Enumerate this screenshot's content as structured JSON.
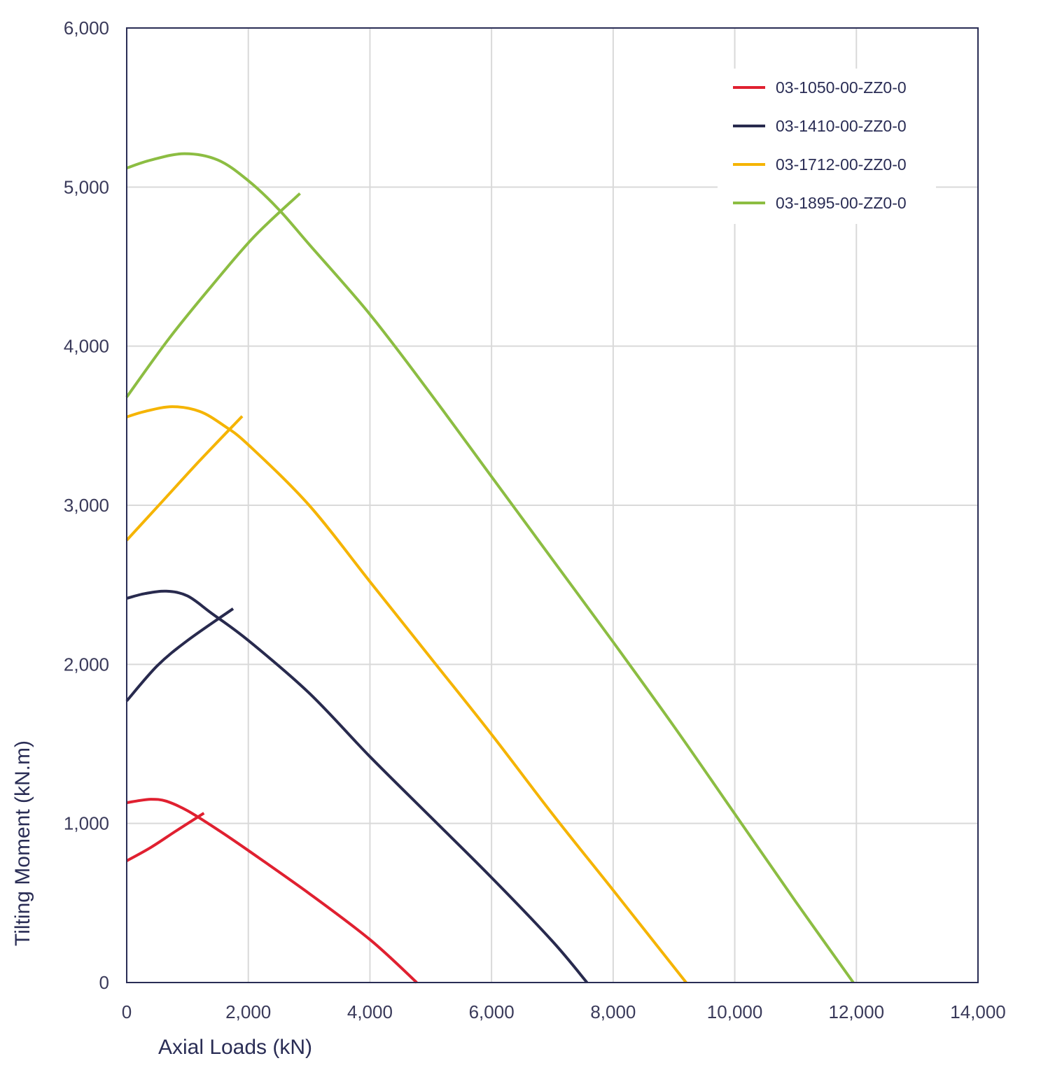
{
  "chart_data": {
    "type": "line",
    "title": "",
    "xlabel": "Axial Loads (kN)",
    "ylabel": "Tilting Moment (kN.m)",
    "xlim": [
      0,
      14000
    ],
    "ylim": [
      0,
      6000
    ],
    "xticks": [
      0,
      2000,
      4000,
      6000,
      8000,
      10000,
      12000,
      14000
    ],
    "xtick_labels": [
      "0",
      "2,000",
      "4,000",
      "6,000",
      "8,000",
      "10,000",
      "12,000",
      "14,000"
    ],
    "yticks": [
      0,
      1000,
      2000,
      3000,
      4000,
      5000,
      6000
    ],
    "ytick_labels": [
      "0",
      "1,000",
      "2,000",
      "3,000",
      "4,000",
      "5,000",
      "6,000"
    ],
    "grid": true,
    "legend_position": "top-right",
    "series": [
      {
        "name": "03-1050-00-ZZ0-0",
        "color": "#e02030",
        "segments": [
          [
            [
              0,
              1130
            ],
            [
              150,
              1140
            ],
            [
              400,
              1152
            ],
            [
              650,
              1140
            ],
            [
              1000,
              1080
            ],
            [
              1500,
              960
            ],
            [
              2000,
              830
            ],
            [
              3000,
              560
            ],
            [
              4000,
              270
            ],
            [
              4770,
              0
            ]
          ],
          [
            [
              0,
              765
            ],
            [
              400,
              850
            ],
            [
              800,
              950
            ],
            [
              1270,
              1065
            ]
          ]
        ]
      },
      {
        "name": "03-1410-00-ZZ0-0",
        "color": "#282a4e",
        "segments": [
          [
            [
              0,
              2415
            ],
            [
              300,
              2445
            ],
            [
              650,
              2460
            ],
            [
              1000,
              2430
            ],
            [
              1400,
              2320
            ],
            [
              2000,
              2150
            ],
            [
              3000,
              1820
            ],
            [
              4000,
              1420
            ],
            [
              5000,
              1040
            ],
            [
              6000,
              660
            ],
            [
              7000,
              260
            ],
            [
              7570,
              0
            ]
          ],
          [
            [
              0,
              1770
            ],
            [
              500,
              1990
            ],
            [
              1000,
              2150
            ],
            [
              1750,
              2350
            ]
          ]
        ]
      },
      {
        "name": "03-1712-00-ZZ0-0",
        "color": "#f5b400",
        "segments": [
          [
            [
              0,
              3555
            ],
            [
              300,
              3590
            ],
            [
              750,
              3620
            ],
            [
              1200,
              3590
            ],
            [
              1600,
              3500
            ],
            [
              2000,
              3380
            ],
            [
              3000,
              3000
            ],
            [
              4000,
              2520
            ],
            [
              5000,
              2040
            ],
            [
              6000,
              1560
            ],
            [
              7000,
              1060
            ],
            [
              8000,
              580
            ],
            [
              9200,
              0
            ]
          ],
          [
            [
              0,
              2780
            ],
            [
              600,
              3030
            ],
            [
              1200,
              3280
            ],
            [
              1900,
              3560
            ]
          ]
        ]
      },
      {
        "name": "03-1895-00-ZZ0-0",
        "color": "#8cbd42",
        "segments": [
          [
            [
              0,
              5120
            ],
            [
              400,
              5170
            ],
            [
              950,
              5210
            ],
            [
              1500,
              5170
            ],
            [
              2000,
              5040
            ],
            [
              2500,
              4860
            ],
            [
              3000,
              4640
            ],
            [
              4000,
              4200
            ],
            [
              5000,
              3700
            ],
            [
              6000,
              3180
            ],
            [
              7000,
              2660
            ],
            [
              8000,
              2140
            ],
            [
              9000,
              1610
            ],
            [
              10000,
              1060
            ],
            [
              11000,
              510
            ],
            [
              11950,
              0
            ]
          ],
          [
            [
              0,
              3680
            ],
            [
              700,
              4050
            ],
            [
              1400,
              4380
            ],
            [
              2100,
              4690
            ],
            [
              2850,
              4960
            ]
          ]
        ]
      }
    ]
  }
}
